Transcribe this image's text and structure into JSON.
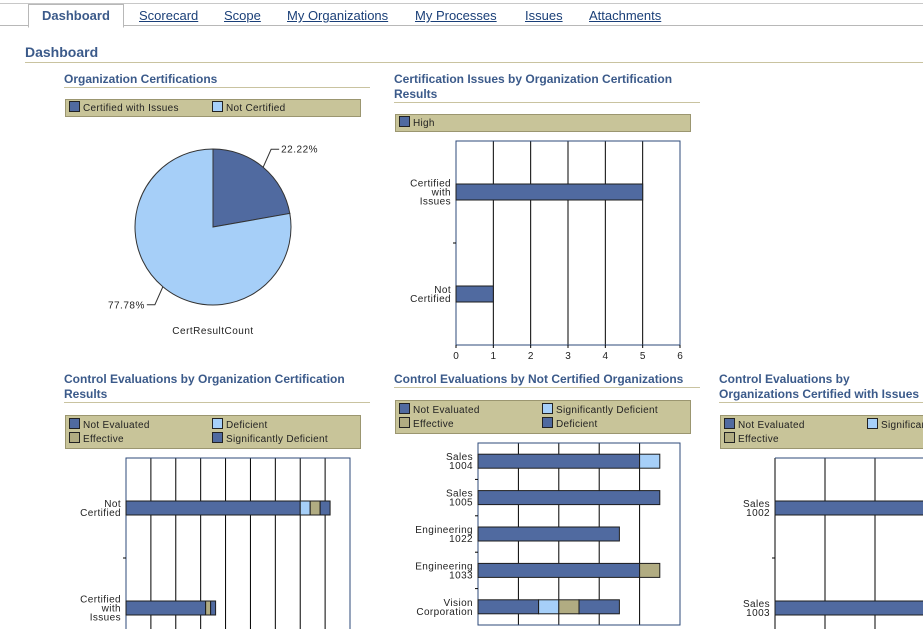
{
  "tabs": [
    "Dashboard",
    "Scorecard",
    "Scope",
    "My Organizations",
    "My Processes",
    "Issues",
    "Attachments"
  ],
  "page_title": "Dashboard",
  "colors": {
    "dark": "#506aa0",
    "light": "#a6cff8",
    "tan": "#b1ac82",
    "legend_bg": "#c8c499"
  },
  "sections": {
    "org_cert": "Organization Certifications",
    "cert_issues": "Certification Issues by Organization Certification Results",
    "ctrl_eval_cert": "Control Evaluations by Organization Certification Results",
    "ctrl_eval_notcert": "Control Evaluations by Not Certified Organizations",
    "ctrl_eval_issues": "Control Evaluations by Organizations Certified with Issues"
  },
  "legends": {
    "org_cert": [
      {
        "label": "Certified with Issues",
        "color": "#506aa0"
      },
      {
        "label": "Not Certified",
        "color": "#a6cff8"
      }
    ],
    "cert_issues": [
      {
        "label": "High",
        "color": "#506aa0"
      }
    ],
    "ctrl_eval_cert": [
      {
        "label": "Not Evaluated",
        "color": "#506aa0"
      },
      {
        "label": "Deficient",
        "color": "#a6cff8"
      },
      {
        "label": "Effective",
        "color": "#b1ac82"
      },
      {
        "label": "Significantly Deficient",
        "color": "#506aa0"
      }
    ],
    "ctrl_eval_notcert": [
      {
        "label": "Not Evaluated",
        "color": "#506aa0"
      },
      {
        "label": "Significantly Deficient",
        "color": "#a6cff8"
      },
      {
        "label": "Effective",
        "color": "#b1ac82"
      },
      {
        "label": "Deficient",
        "color": "#506aa0"
      }
    ],
    "ctrl_eval_issues": [
      {
        "label": "Not Evaluated",
        "color": "#506aa0"
      },
      {
        "label": "Significantly Deficient",
        "color": "#a6cff8"
      },
      {
        "label": "Effective",
        "color": "#b1ac82"
      }
    ]
  },
  "chart_data": [
    {
      "id": "org_cert",
      "type": "pie",
      "xlabel": "CertResultCount",
      "slices": [
        {
          "name": "Certified with Issues",
          "value": 22.22,
          "label": "22.22%",
          "color": "#506aa0"
        },
        {
          "name": "Not Certified",
          "value": 77.78,
          "label": "77.78%",
          "color": "#a6cff8"
        }
      ]
    },
    {
      "id": "cert_issues",
      "type": "bar",
      "orientation": "horizontal",
      "categories": [
        "Certified with Issues",
        "Not Certified"
      ],
      "series": [
        {
          "name": "High",
          "values": [
            5,
            1
          ],
          "color": "#506aa0"
        }
      ],
      "xlim": [
        0,
        6
      ],
      "xticks": [
        0,
        1,
        2,
        3,
        4,
        5,
        6
      ],
      "grid": true
    },
    {
      "id": "ctrl_eval_cert",
      "type": "bar",
      "orientation": "horizontal",
      "stacked": true,
      "categories": [
        "Not Certified",
        "Certified with Issues"
      ],
      "series": [
        {
          "name": "Not Evaluated",
          "values": [
            35,
            16
          ],
          "color": "#506aa0"
        },
        {
          "name": "Deficient",
          "values": [
            2,
            0
          ],
          "color": "#a6cff8"
        },
        {
          "name": "Effective",
          "values": [
            2,
            1
          ],
          "color": "#b1ac82"
        },
        {
          "name": "Significantly Deficient",
          "values": [
            2,
            1
          ],
          "color": "#506aa0"
        }
      ],
      "xlim": [
        0,
        45
      ],
      "grid": true
    },
    {
      "id": "ctrl_eval_notcert",
      "type": "bar",
      "orientation": "horizontal",
      "stacked": true,
      "categories": [
        "Sales 1004",
        "Sales 1005",
        "Engineering 1022",
        "Engineering 1033",
        "Vision Corporation"
      ],
      "series": [
        {
          "name": "Not Evaluated",
          "values": [
            8,
            9,
            7,
            8,
            3
          ],
          "color": "#506aa0"
        },
        {
          "name": "Significantly Deficient",
          "values": [
            1,
            0,
            0,
            0,
            1
          ],
          "color": "#a6cff8"
        },
        {
          "name": "Effective",
          "values": [
            0,
            0,
            0,
            1,
            1
          ],
          "color": "#b1ac82"
        },
        {
          "name": "Deficient",
          "values": [
            0,
            0,
            0,
            0,
            2
          ],
          "color": "#506aa0"
        }
      ],
      "xlim": [
        0,
        10
      ],
      "grid": true
    },
    {
      "id": "ctrl_eval_issues",
      "type": "bar",
      "orientation": "horizontal",
      "stacked": true,
      "categories": [
        "Sales 1002",
        "Sales 1003"
      ],
      "series": [
        {
          "name": "Not Evaluated",
          "values": [
            7,
            7
          ],
          "color": "#506aa0"
        },
        {
          "name": "Significantly Deficient",
          "values": [
            0,
            0
          ],
          "color": "#a6cff8"
        },
        {
          "name": "Effective",
          "values": [
            0,
            0
          ],
          "color": "#b1ac82"
        }
      ],
      "xlim": [
        0,
        8
      ],
      "grid": true
    }
  ]
}
